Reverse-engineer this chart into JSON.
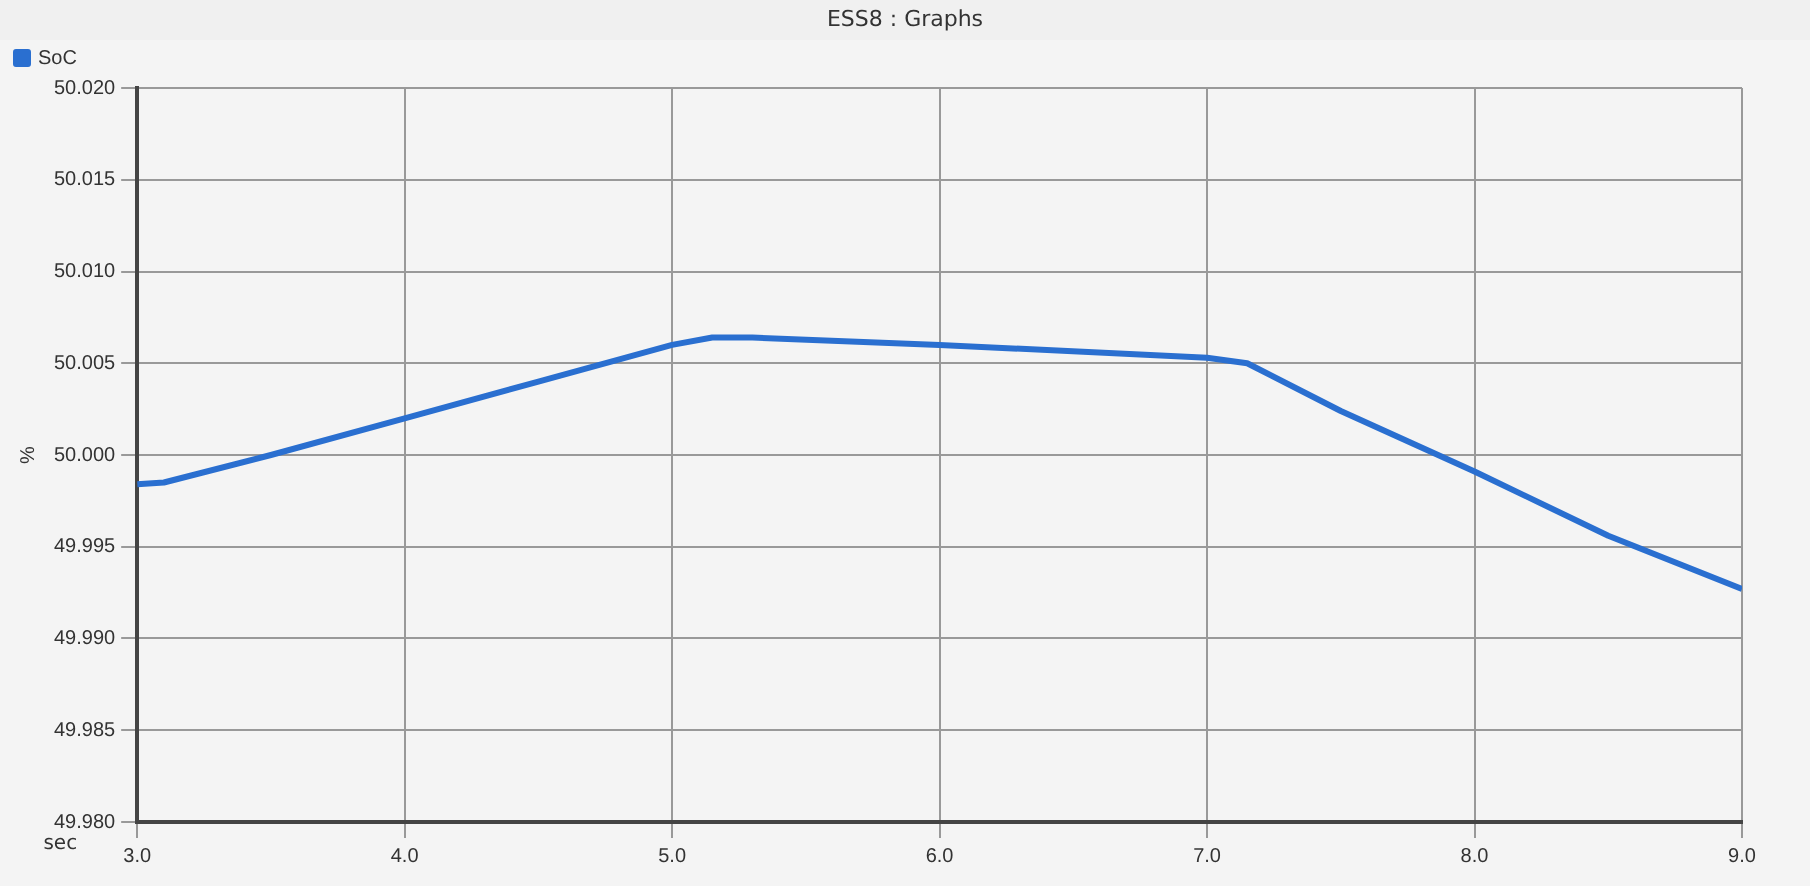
{
  "chart_data": {
    "type": "line",
    "title": "ESS8 : Graphs",
    "xlabel": "sec",
    "ylabel": "%",
    "x": [
      3.0,
      3.1,
      3.5,
      4.0,
      4.5,
      5.0,
      5.15,
      5.3,
      6.0,
      7.0,
      7.15,
      7.5,
      8.0,
      8.5,
      9.0
    ],
    "series": [
      {
        "name": "SoC",
        "color": "#2a6fd0",
        "values": [
          49.9984,
          49.9985,
          50.0,
          50.002,
          50.004,
          50.006,
          50.0064,
          50.0064,
          50.006,
          50.0053,
          50.005,
          50.0024,
          49.9991,
          49.9956,
          49.9927
        ]
      }
    ],
    "xlim": [
      3.0,
      9.0
    ],
    "xticks": [
      {
        "value": 3,
        "label": "3.0"
      },
      {
        "value": 4,
        "label": "4.0"
      },
      {
        "value": 5,
        "label": "5.0"
      },
      {
        "value": 6,
        "label": "6.0"
      },
      {
        "value": 7,
        "label": "7.0"
      },
      {
        "value": 8,
        "label": "8.0"
      },
      {
        "value": 9,
        "label": "9.0"
      }
    ],
    "ylim": [
      49.98,
      50.02
    ],
    "yticks": [
      {
        "value": 49.98,
        "label": "49.980"
      },
      {
        "value": 49.985,
        "label": "49.985"
      },
      {
        "value": 49.99,
        "label": "49.990"
      },
      {
        "value": 49.995,
        "label": "49.995"
      },
      {
        "value": 50.0,
        "label": "50.000"
      },
      {
        "value": 50.005,
        "label": "50.005"
      },
      {
        "value": 50.01,
        "label": "50.010"
      },
      {
        "value": 50.015,
        "label": "50.015"
      },
      {
        "value": 50.02,
        "label": "50.020"
      }
    ],
    "grid": true,
    "legend": "top left",
    "marker": "none",
    "line_style": "solid"
  }
}
